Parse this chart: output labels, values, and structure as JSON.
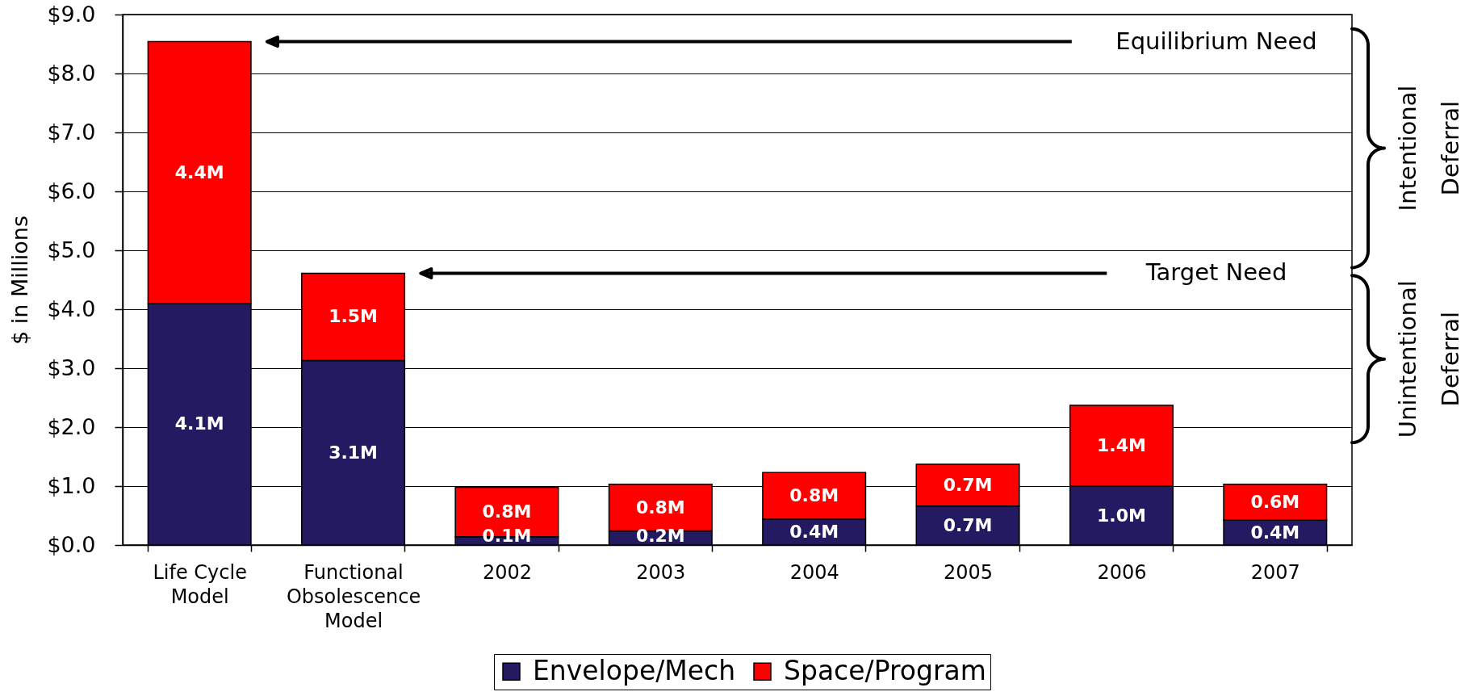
{
  "chart_data": {
    "type": "bar",
    "stacked": true,
    "ylabel": "$ in Millions",
    "categories": [
      "Life Cycle Model",
      "Functional Obsolescence Model",
      "2002",
      "2003",
      "2004",
      "2005",
      "2006",
      "2007"
    ],
    "series": [
      {
        "name": "Envelope/Mech",
        "color": "#231a62",
        "values": [
          4.1,
          3.13,
          0.14,
          0.24,
          0.44,
          0.66,
          1.0,
          0.42
        ],
        "value_labels": [
          "4.1M",
          "3.1M",
          "0.1M",
          "0.2M",
          "0.4M",
          "0.7M",
          "1.0M",
          "0.4M"
        ]
      },
      {
        "name": "Space/Program",
        "color": "#ff0000",
        "values": [
          4.44,
          1.48,
          0.84,
          0.79,
          0.79,
          0.71,
          1.37,
          0.61
        ],
        "value_labels": [
          "4.4M",
          "1.5M",
          "0.8M",
          "0.8M",
          "0.8M",
          "0.7M",
          "1.4M",
          "0.6M"
        ]
      }
    ],
    "ylim": [
      0,
      9
    ],
    "yticks": [
      {
        "value": 0,
        "label": "$0.0"
      },
      {
        "value": 1,
        "label": "$1.0"
      },
      {
        "value": 2,
        "label": "$2.0"
      },
      {
        "value": 3,
        "label": "$3.0"
      },
      {
        "value": 4,
        "label": "$4.0"
      },
      {
        "value": 5,
        "label": "$5.0"
      },
      {
        "value": 6,
        "label": "$6.0"
      },
      {
        "value": 7,
        "label": "$7.0"
      },
      {
        "value": 8,
        "label": "$8.0"
      },
      {
        "value": 9,
        "label": "$9.0"
      }
    ],
    "grid": "y",
    "legend": "bottom",
    "ref_lines": [
      {
        "axis": "y",
        "value": 8.54,
        "label": "Equilibrium Need"
      },
      {
        "axis": "y",
        "value": 4.61,
        "label": "Target Need"
      }
    ],
    "annotations": [
      "Intentional Deferral",
      "Unintentional Deferral"
    ]
  }
}
